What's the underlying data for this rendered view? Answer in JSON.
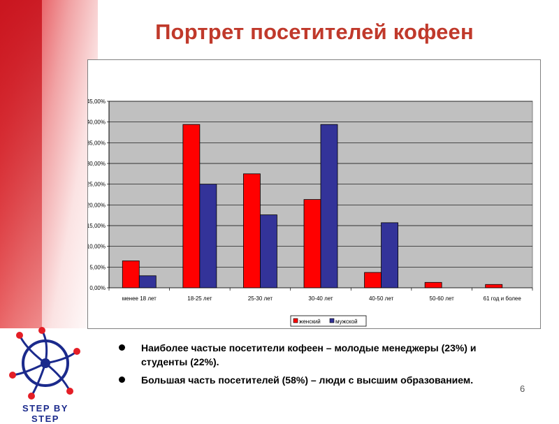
{
  "slide": {
    "title": "Портрет посетителей кофеен",
    "bullets": [
      "Наиболее частые посетители кофеен – молодые менеджеры (23%) и студенты (22%).",
      "Большая часть посетителей (58%) – люди с высшим образованием."
    ],
    "logo_text": "STEP BY STEP",
    "page_number": "6"
  },
  "chart_data": {
    "type": "bar",
    "categories": [
      "менее 18 лет",
      "18-25 лет",
      "25-30 лет",
      "30-40 лет",
      "40-50 лет",
      "50-60 лет",
      "61 год и более"
    ],
    "series": [
      {
        "name": "женский",
        "color": "#ff0000",
        "values": [
          6.5,
          39.4,
          27.5,
          21.3,
          3.7,
          1.3,
          0.8
        ]
      },
      {
        "name": "мужской",
        "color": "#333399",
        "values": [
          2.9,
          25.0,
          17.6,
          39.4,
          15.7,
          0,
          0
        ]
      }
    ],
    "yticks": [
      "0,00%",
      "5,00%",
      "10,00%",
      "15,00%",
      "20,00%",
      "25,00%",
      "30,00%",
      "35,00%",
      "40,00%",
      "45,00%"
    ],
    "ylim": [
      0,
      45
    ],
    "grid": true,
    "plot_background": "#c0c0c0",
    "legend_position": "bottom"
  }
}
